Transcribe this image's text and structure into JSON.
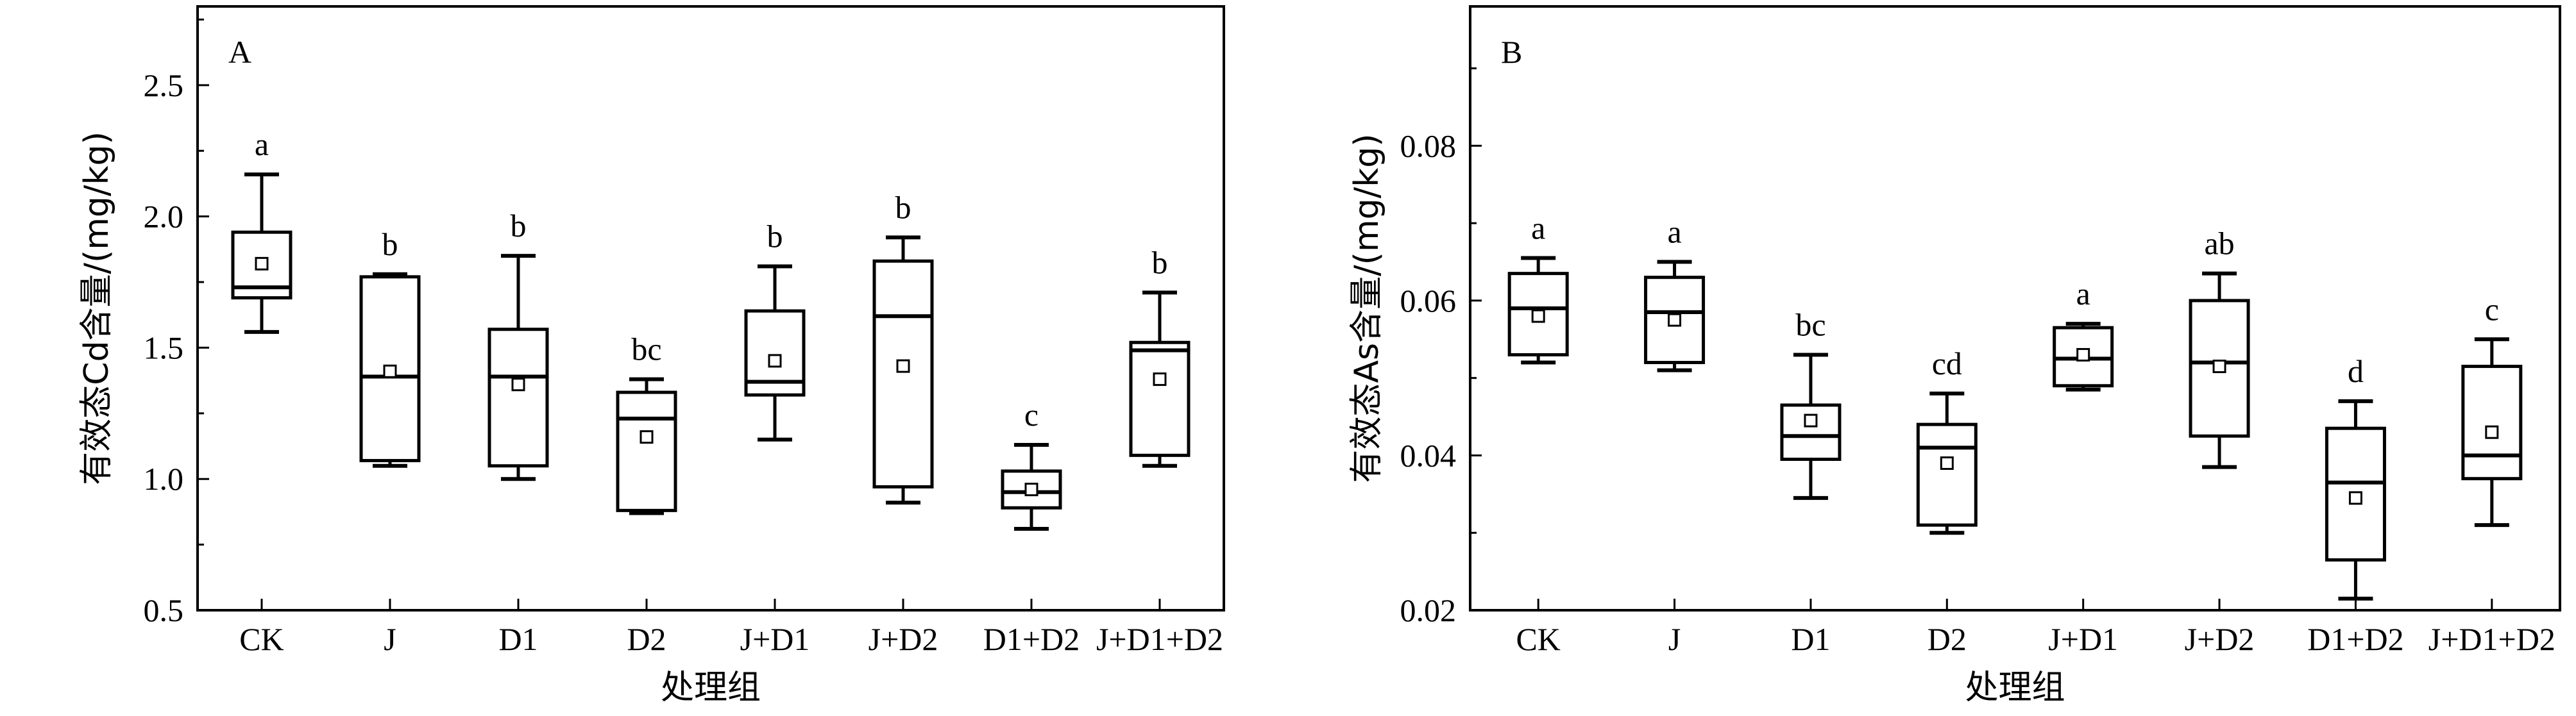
{
  "chart_data": [
    {
      "type": "box",
      "panel_label": "A",
      "xlabel": "处理组",
      "ylabel": "有效态Cd含量/(mg/kg)",
      "ylim": [
        0.5,
        2.8
      ],
      "yticks": [
        "0.5",
        "1.0",
        "1.5",
        "2.0",
        "2.5"
      ],
      "categories": [
        "CK",
        "J",
        "D1",
        "D2",
        "J+D1",
        "J+D2",
        "D1+D2",
        "J+D1+D2"
      ],
      "boxes": [
        {
          "min": 1.56,
          "q1": 1.69,
          "median": 1.73,
          "q3": 1.94,
          "max": 2.16,
          "mean": 1.82,
          "label": "a"
        },
        {
          "min": 1.05,
          "q1": 1.07,
          "median": 1.39,
          "q3": 1.77,
          "max": 1.78,
          "mean": 1.41,
          "label": "b"
        },
        {
          "min": 1.0,
          "q1": 1.05,
          "median": 1.39,
          "q3": 1.57,
          "max": 1.85,
          "mean": 1.36,
          "label": "b"
        },
        {
          "min": 0.87,
          "q1": 0.88,
          "median": 1.23,
          "q3": 1.33,
          "max": 1.38,
          "mean": 1.16,
          "label": "bc"
        },
        {
          "min": 1.15,
          "q1": 1.32,
          "median": 1.37,
          "q3": 1.64,
          "max": 1.81,
          "mean": 1.45,
          "label": "b"
        },
        {
          "min": 0.91,
          "q1": 0.97,
          "median": 1.62,
          "q3": 1.83,
          "max": 1.92,
          "mean": 1.43,
          "label": "b"
        },
        {
          "min": 0.81,
          "q1": 0.89,
          "median": 0.95,
          "q3": 1.03,
          "max": 1.13,
          "mean": 0.96,
          "label": "c"
        },
        {
          "min": 1.05,
          "q1": 1.09,
          "median": 1.49,
          "q3": 1.52,
          "max": 1.71,
          "mean": 1.38,
          "label": "b"
        }
      ]
    },
    {
      "type": "box",
      "panel_label": "B",
      "xlabel": "处理组",
      "ylabel": "有效态As含量/(mg/kg)",
      "ylim": [
        0.02,
        0.098
      ],
      "yticks": [
        "0.02",
        "0.04",
        "0.06",
        "0.08"
      ],
      "categories": [
        "CK",
        "J",
        "D1",
        "D2",
        "J+D1",
        "J+D2",
        "D1+D2",
        "J+D1+D2"
      ],
      "boxes": [
        {
          "min": 0.052,
          "q1": 0.053,
          "median": 0.059,
          "q3": 0.0635,
          "max": 0.0655,
          "mean": 0.058,
          "label": "a"
        },
        {
          "min": 0.051,
          "q1": 0.052,
          "median": 0.0585,
          "q3": 0.063,
          "max": 0.065,
          "mean": 0.0575,
          "label": "a"
        },
        {
          "min": 0.0345,
          "q1": 0.0395,
          "median": 0.0425,
          "q3": 0.0465,
          "max": 0.053,
          "mean": 0.0445,
          "label": "bc"
        },
        {
          "min": 0.03,
          "q1": 0.031,
          "median": 0.041,
          "q3": 0.044,
          "max": 0.048,
          "mean": 0.039,
          "label": "cd"
        },
        {
          "min": 0.0485,
          "q1": 0.049,
          "median": 0.0525,
          "q3": 0.0565,
          "max": 0.057,
          "mean": 0.053,
          "label": "a"
        },
        {
          "min": 0.0385,
          "q1": 0.0425,
          "median": 0.052,
          "q3": 0.06,
          "max": 0.0635,
          "mean": 0.0515,
          "label": "ab"
        },
        {
          "min": 0.0215,
          "q1": 0.0265,
          "median": 0.0365,
          "q3": 0.0435,
          "max": 0.047,
          "mean": 0.0345,
          "label": "d"
        },
        {
          "min": 0.031,
          "q1": 0.037,
          "median": 0.04,
          "q3": 0.0515,
          "max": 0.055,
          "mean": 0.043,
          "label": "c"
        }
      ]
    }
  ]
}
